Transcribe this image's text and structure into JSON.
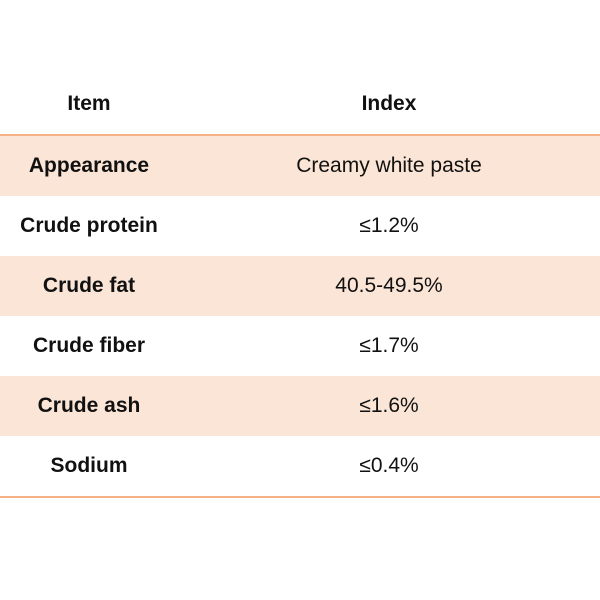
{
  "table": {
    "header": {
      "item": "Item",
      "index": "Index"
    },
    "rows": [
      {
        "item": "Appearance",
        "index": "Creamy white paste"
      },
      {
        "item": "Crude protein",
        "index": "≤1.2%"
      },
      {
        "item": "Crude fat",
        "index": "40.5-49.5%"
      },
      {
        "item": "Crude fiber",
        "index": "≤1.7%"
      },
      {
        "item": "Crude ash",
        "index": "≤1.6%"
      },
      {
        "item": "Sodium",
        "index": "≤0.4%"
      }
    ]
  },
  "colors": {
    "row_shading": "#fbe5d6",
    "rule_lines": "#f4b183"
  }
}
